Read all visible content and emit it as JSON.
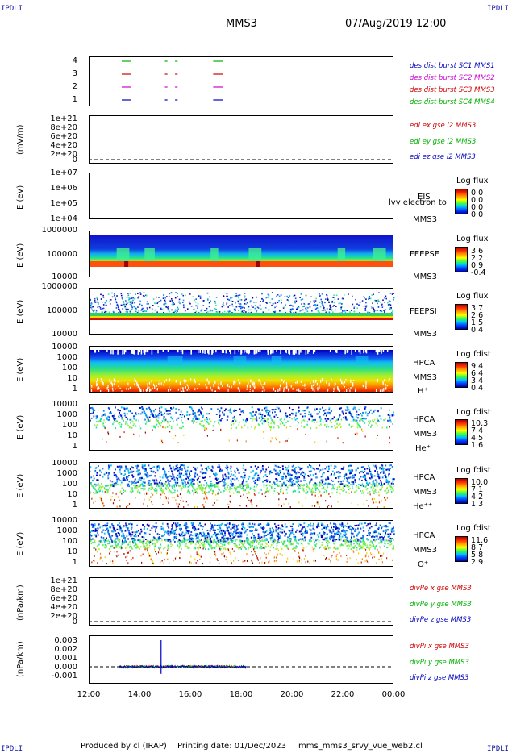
{
  "header": {
    "corner_label": "IPDLI",
    "spacecraft": "MMS3",
    "datetime": "07/Aug/2019 12:00"
  },
  "footer": {
    "produced_by": "Produced by cl (IRAP)",
    "printing_date": "Printing date: 01/Dec/2023",
    "script": "mms_mms3_srvy_vue_web2.cl"
  },
  "x_axis": {
    "ticks": [
      "12:00",
      "14:00",
      "16:00",
      "18:00",
      "20:00",
      "22:00",
      "00:00"
    ]
  },
  "panels": {
    "p1": {
      "ticks": [
        "4",
        "3",
        "2",
        "1"
      ],
      "legend": [
        {
          "text": "des dist burst SC1 MMS1",
          "color": "#0000c0"
        },
        {
          "text": "des dist burst SC2 MMS2",
          "color": "#d000d0"
        },
        {
          "text": "des dist burst SC3 MMS3",
          "color": "#d00000"
        },
        {
          "text": "des dist burst SC4 MMS4",
          "color": "#00b000"
        }
      ]
    },
    "p2": {
      "ylabel": "(mV/m)",
      "ticks": [
        "1e+21",
        "8e+20",
        "6e+20",
        "4e+20",
        "2e+20",
        "0"
      ],
      "legend": [
        {
          "text": "edi ex gse l2 MMS3",
          "color": "#d00000"
        },
        {
          "text": "edi ey gse l2 MMS3",
          "color": "#00b000"
        },
        {
          "text": "edi ez gse l2 MMS3",
          "color": "#0000c0"
        }
      ]
    },
    "p3": {
      "ylabel": "E (eV)",
      "ticks": [
        "1e+07",
        "1e+06",
        "1e+05",
        "1e+04"
      ],
      "label1": "EIS",
      "label2": "MMS3",
      "overlay": "lvy electron to",
      "cb_title": "Log flux",
      "cb_values": [
        "0.0",
        "0.0",
        "0.0",
        "0.0"
      ]
    },
    "p4": {
      "ylabel": "E (eV)",
      "ticks": [
        "1000000",
        "100000",
        "10000"
      ],
      "label1": "FEEPSE",
      "label2": "MMS3",
      "cb_title": "Log flux",
      "cb_values": [
        "3.6",
        "2.2",
        "0.9",
        "-0.4"
      ]
    },
    "p5": {
      "ylabel": "E (eV)",
      "ticks": [
        "1000000",
        "100000",
        "10000"
      ],
      "label1": "FEEPSI",
      "label2": "MMS3",
      "cb_title": "Log flux",
      "cb_values": [
        "3.7",
        "2.6",
        "1.5",
        "0.4"
      ]
    },
    "p6": {
      "ylabel": "E (eV)",
      "ticks": [
        "10000",
        "1000",
        "100",
        "10",
        "1"
      ],
      "label1": "HPCA",
      "label2": "MMS3",
      "species": "H⁺",
      "cb_title": "Log fdist",
      "cb_values": [
        "9.4",
        "6.4",
        "3.4",
        "0.4"
      ]
    },
    "p7": {
      "ylabel": "E (eV)",
      "ticks": [
        "10000",
        "1000",
        "100",
        "10",
        "1"
      ],
      "label1": "HPCA",
      "label2": "MMS3",
      "species": "He⁺",
      "cb_title": "Log fdist",
      "cb_values": [
        "10.3",
        "7.4",
        "4.5",
        "1.6"
      ]
    },
    "p8": {
      "ylabel": "E (eV)",
      "ticks": [
        "10000",
        "1000",
        "100",
        "10",
        "1"
      ],
      "label1": "HPCA",
      "label2": "MMS3",
      "species": "He⁺⁺",
      "cb_title": "Log fdist",
      "cb_values": [
        "10.0",
        "7.1",
        "4.2",
        "1.3"
      ]
    },
    "p9": {
      "ylabel": "E (eV)",
      "ticks": [
        "10000",
        "1000",
        "100",
        "10",
        "1"
      ],
      "label1": "HPCA",
      "label2": "MMS3",
      "species": "O⁺",
      "cb_title": "Log fdist",
      "cb_values": [
        "11.6",
        "8.7",
        "5.8",
        "2.9"
      ]
    },
    "p10": {
      "ylabel": "(nPa/km)",
      "ticks": [
        "1e+21",
        "8e+20",
        "6e+20",
        "4e+20",
        "2e+20",
        "0"
      ],
      "legend": [
        {
          "text": "divPe x gse MMS3",
          "color": "#d00000"
        },
        {
          "text": "divPe y gse MMS3",
          "color": "#00b000"
        },
        {
          "text": "divPe z gse MMS3",
          "color": "#0000c0"
        }
      ]
    },
    "p11": {
      "ylabel": "(nPa/km)",
      "ticks": [
        "0.003",
        "0.002",
        "0.001",
        "0.000",
        "-0.001"
      ],
      "legend": [
        {
          "text": "divPi x gse MMS3",
          "color": "#d00000"
        },
        {
          "text": "divPi y gse MMS3",
          "color": "#00b000"
        },
        {
          "text": "divPi z gse MMS3",
          "color": "#0000c0"
        }
      ]
    }
  },
  "chart_data": {
    "type": "heatmap",
    "x_range": [
      "12:00",
      "00:00"
    ],
    "burst_intervals_hours": [
      [
        13.3,
        13.65
      ],
      [
        15.0,
        15.1
      ],
      [
        15.4,
        15.5
      ],
      [
        16.9,
        17.3
      ]
    ],
    "divPi": {
      "x_range_hours": [
        13.2,
        18.2
      ],
      "ylim": [
        -0.0015,
        0.0035
      ],
      "spike_hours": 14.85,
      "spike_max": 0.003,
      "spike_min": -0.0008
    }
  }
}
